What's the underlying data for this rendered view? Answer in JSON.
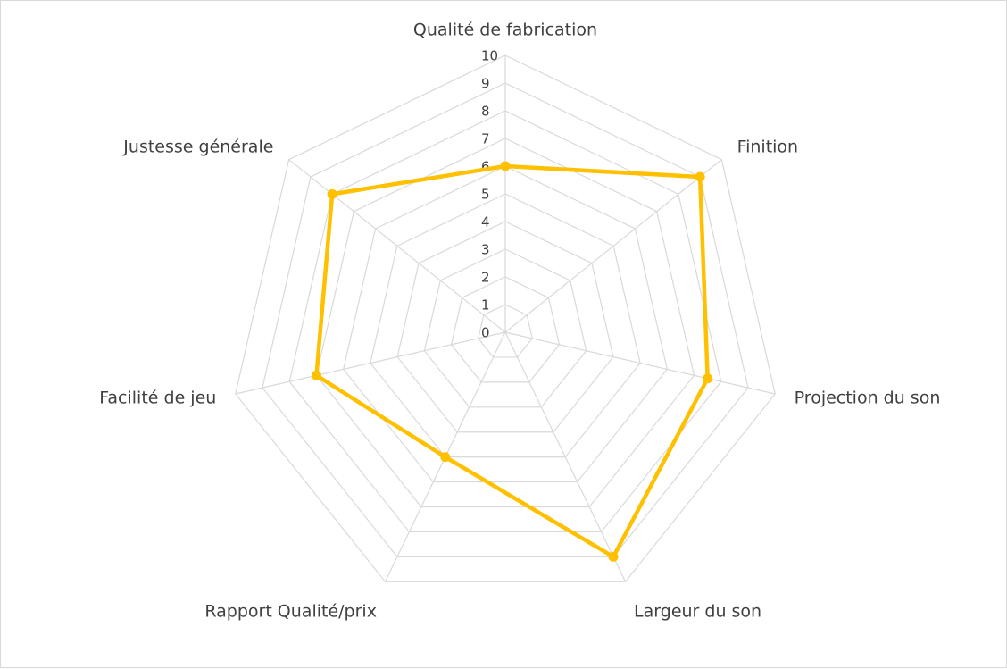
{
  "chart_data": {
    "type": "radar",
    "categories": [
      "Qualité de fabrication",
      "Finition",
      "Projection du son",
      "Largeur du son",
      "Rapport Qualité/prix",
      "Facilité de jeu",
      "Justesse générale"
    ],
    "series": [
      {
        "values": [
          6,
          9,
          7.5,
          9,
          5,
          7,
          8
        ],
        "color": "#FFC000"
      }
    ],
    "rlim": [
      0,
      10
    ],
    "ticks": [
      "0",
      "1",
      "2",
      "3",
      "4",
      "5",
      "6",
      "7",
      "8",
      "9",
      "10"
    ],
    "grid": true,
    "grid_color": "#d9d9d9",
    "legend": "none"
  }
}
